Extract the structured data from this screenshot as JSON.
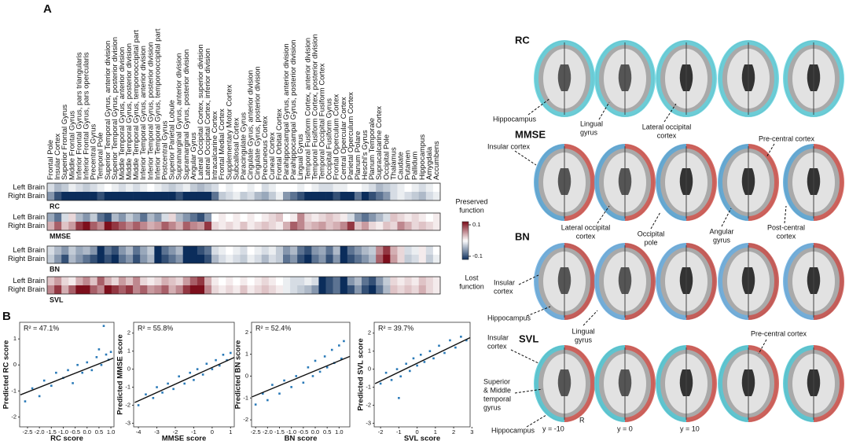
{
  "panel_a_label": "A",
  "panel_b_label": "B",
  "chart_data": [
    {
      "type": "heatmap",
      "regions": [
        "Frontal Pole",
        "Insular Cortex",
        "Superior Frontal Gyrus",
        "Middle Frontal Gyrus",
        "Inferior Frontal Gyrus, pars triangularis",
        "Inferior Frontal Gyrus, pars opercularis",
        "Precentral Gyrus",
        "Temporal Pole",
        "Superior Temporal Gyrus, anterior division",
        "Superior Temporal Gyrus, posterior division",
        "Middle Temporal Gyrus, anterior division",
        "Middle Temporal Gyrus, posterior division",
        "Middle Temporal Gyrus, temporooccipital part",
        "Inferior Temporal Gyrus, anterior division",
        "Inferior Temporal Gyrus, posterior division",
        "Inferior Temporal Gyrus, temporooccipital part",
        "Postcentral Gyrus",
        "Superior Parietal Lobule",
        "Supramarginal Gyrus, anterior division",
        "Supramarginal Gyrus, posterior division",
        "Angular Gyrus",
        "Lateral Occipital Cortex, superior division",
        "Lateral Occipital Cortex, inferior division",
        "Intracalcarine Cortex",
        "Frontal Medial Cortex",
        "Supplementary Motor Cortex",
        "Subcallosal Cortex",
        "Paracingulate Gyrus",
        "Cingulate Gyrus, anterior division",
        "Cingulate Gyrus, posterior division",
        "Precuneous Cortex",
        "Cuneal Cortex",
        "Frontal Orbital Cortex",
        "Parahippocampal Gyrus, anterior division",
        "Parahippocampal Gyrus, posterior division",
        "Lingual Gyrus",
        "Temporal Fusiform Cortex, anterior division",
        "Temporal Fusiform Cortex, posterior division",
        "Temporal Occipital Fusiform Cortex",
        "Occipital Fusiform Gyrus",
        "Frontal Operculum Cortex",
        "Central Opercular Cortex",
        "Parietal Operculum Cortex",
        "Planum Polare",
        "Heschl's Gyrus",
        "Planum Temporale",
        "Supracalcarine Cortex",
        "Occipital Pole",
        "Thalamus",
        "Caudate",
        "Putamen",
        "Pallidum",
        "Hippocampus",
        "Amygdala",
        "Accumbens"
      ],
      "row_labels": [
        "Left Brain",
        "Right Brain"
      ],
      "blocks": [
        {
          "name": "RC",
          "rows": [
            [
              -0.02,
              -0.04,
              -0.03,
              -0.01,
              -0.02,
              -0.03,
              -0.02,
              -0.01,
              0,
              -0.01,
              -0.02,
              -0.01,
              -0.02,
              -0.01,
              0,
              -0.01,
              -0.02,
              -0.03,
              -0.02,
              -0.01,
              -0.03,
              -0.04,
              -0.03,
              -0.02,
              0,
              -0.01,
              0,
              0,
              -0.01,
              0,
              -0.02,
              -0.01,
              0,
              0,
              0,
              -0.01,
              0,
              -0.01,
              -0.02,
              -0.02,
              -0.01,
              -0.01,
              0,
              0,
              -0.01,
              -0.02,
              -0.04,
              -0.03,
              -0.02,
              -0.01,
              0,
              -0.01,
              -0.02,
              -0.01,
              0
            ],
            [
              -0.06,
              -0.1,
              -0.12,
              -0.12,
              -0.12,
              -0.12,
              -0.12,
              -0.1,
              -0.12,
              -0.12,
              -0.12,
              -0.12,
              -0.12,
              -0.12,
              -0.12,
              -0.12,
              -0.12,
              -0.12,
              -0.1,
              -0.12,
              -0.12,
              -0.12,
              -0.12,
              -0.08,
              -0.03,
              -0.02,
              -0.01,
              -0.03,
              -0.02,
              -0.04,
              -0.05,
              -0.03,
              -0.01,
              -0.06,
              -0.08,
              -0.1,
              -0.12,
              -0.12,
              -0.12,
              -0.12,
              -0.1,
              -0.12,
              -0.12,
              -0.08,
              -0.12,
              -0.1,
              -0.08,
              -0.06,
              -0.02,
              -0.01,
              -0.02,
              -0.03,
              -0.04,
              -0.02,
              -0.01
            ]
          ]
        },
        {
          "name": "MMSE",
          "rows": [
            [
              -0.05,
              -0.08,
              -0.02,
              0.02,
              -0.04,
              -0.06,
              -0.03,
              -0.08,
              -0.1,
              -0.04,
              -0.06,
              -0.03,
              -0.05,
              -0.08,
              -0.04,
              -0.06,
              -0.02,
              0.02,
              -0.04,
              -0.06,
              -0.08,
              -0.1,
              -0.06,
              0,
              0.01,
              0,
              0.01,
              0,
              0.01,
              0,
              0.01,
              0.02,
              0.03,
              0,
              0.01,
              0.06,
              0.02,
              0.01,
              0.02,
              0.03,
              0.02,
              0.01,
              -0.02,
              -0.06,
              -0.08,
              -0.06,
              -0.04,
              -0.02,
              0.03,
              0.02,
              0.01,
              0.02,
              0.01,
              0,
              0.01
            ],
            [
              0.04,
              0.08,
              0.03,
              0.05,
              0.1,
              0.12,
              0.08,
              0.06,
              0.12,
              0.1,
              0.08,
              0.06,
              0.08,
              0.06,
              0.04,
              0.05,
              0.08,
              0.06,
              0.04,
              0.08,
              0.06,
              0.05,
              0.1,
              0.02,
              0.01,
              0.02,
              0.01,
              0.03,
              0.01,
              0.02,
              0.03,
              0.02,
              0.01,
              0.04,
              0.08,
              0.06,
              0.03,
              0.04,
              0.05,
              0.03,
              0.04,
              0.06,
              0.1,
              0.03,
              0.05,
              0.02,
              0.01,
              0.03,
              0.02,
              0.06,
              0.04,
              0.02,
              0.03,
              0.02,
              0.01
            ]
          ]
        },
        {
          "name": "BN",
          "rows": [
            [
              -0.02,
              -0.04,
              -0.06,
              -0.03,
              -0.05,
              -0.04,
              -0.06,
              -0.12,
              -0.08,
              -0.1,
              -0.06,
              -0.04,
              -0.08,
              -0.05,
              -0.03,
              -0.12,
              -0.08,
              -0.06,
              -0.04,
              -0.12,
              -0.12,
              -0.1,
              -0.08,
              -0.02,
              -0.01,
              0,
              -0.01,
              -0.02,
              0,
              -0.01,
              -0.02,
              -0.01,
              -0.03,
              -0.06,
              -0.04,
              -0.08,
              -0.1,
              -0.06,
              -0.05,
              -0.08,
              -0.04,
              -0.12,
              -0.08,
              -0.06,
              -0.04,
              -0.03,
              0.06,
              0.1,
              0.04,
              0.02,
              -0.02,
              -0.01,
              0.01,
              -0.02,
              0
            ],
            [
              -0.03,
              -0.06,
              -0.1,
              -0.04,
              -0.06,
              -0.08,
              -0.1,
              -0.12,
              -0.1,
              -0.12,
              -0.08,
              -0.06,
              -0.1,
              -0.06,
              -0.04,
              -0.12,
              -0.1,
              -0.08,
              -0.06,
              -0.12,
              -0.12,
              -0.12,
              -0.1,
              -0.04,
              -0.02,
              -0.01,
              -0.02,
              -0.03,
              -0.01,
              -0.02,
              -0.04,
              -0.02,
              -0.03,
              -0.08,
              -0.06,
              -0.1,
              -0.12,
              -0.08,
              -0.06,
              -0.1,
              -0.06,
              -0.12,
              -0.1,
              -0.08,
              -0.06,
              -0.04,
              0.08,
              0.12,
              0.05,
              0.02,
              -0.03,
              -0.02,
              0.01,
              -0.03,
              -0.01
            ]
          ]
        },
        {
          "name": "SVL",
          "rows": [
            [
              0.03,
              0.05,
              0.02,
              0.01,
              0.04,
              0.06,
              0.03,
              0.08,
              0.04,
              0.02,
              0.05,
              0.03,
              0.06,
              0.02,
              0.01,
              0.02,
              0.04,
              0.03,
              0.02,
              0.05,
              0.08,
              0.1,
              0.04,
              0.01,
              0,
              0.01,
              0,
              0.01,
              0,
              0.01,
              0.02,
              0.01,
              0,
              -0.01,
              -0.02,
              -0.02,
              -0.01,
              -0.02,
              -0.12,
              -0.1,
              -0.08,
              -0.12,
              -0.06,
              -0.04,
              -0.08,
              -0.1,
              -0.06,
              -0.03,
              0.02,
              0.01,
              0.02,
              0.01,
              0.03,
              0.02,
              0.01
            ],
            [
              0.06,
              0.1,
              0.04,
              0.08,
              0.12,
              0.12,
              0.08,
              0.06,
              0.12,
              0.1,
              0.08,
              0.1,
              0.06,
              0.08,
              0.05,
              0.06,
              0.08,
              0.04,
              0.06,
              0.1,
              0.12,
              0.12,
              0.06,
              0.02,
              0.01,
              0.02,
              0.01,
              0.03,
              0.01,
              0.02,
              0.03,
              0.02,
              0.01,
              -0.01,
              -0.02,
              -0.03,
              -0.04,
              -0.06,
              -0.12,
              -0.1,
              -0.08,
              -0.12,
              -0.1,
              -0.06,
              -0.1,
              -0.12,
              -0.08,
              -0.04,
              0.03,
              0.02,
              0.03,
              0.02,
              0.04,
              0.02,
              0.01
            ]
          ]
        }
      ],
      "clim": [
        -0.12,
        0.12
      ],
      "colors": [
        "#0b2d5b",
        "#ffffff",
        "#7d0f1c"
      ],
      "colorbar": {
        "ticks": [
          0.1,
          -0.1
        ],
        "top_label": [
          "Preserved",
          "function"
        ],
        "bottom_label": [
          "Lost",
          "function"
        ]
      }
    },
    {
      "type": "scatter",
      "r2_label": "R² = 47.1%",
      "xlabel": "RC score",
      "ylabel": "Predicted RC score",
      "color": "#2a7ab8",
      "x": [
        -2.6,
        -2.3,
        -2.0,
        -1.8,
        -1.5,
        -1.3,
        -1.0,
        -0.8,
        -0.6,
        -0.4,
        -0.2,
        0,
        0.2,
        0.4,
        0.5,
        0.6,
        0.8,
        0.9,
        1.0,
        0.7
      ],
      "values": [
        -1.4,
        -0.9,
        -1.2,
        -0.6,
        -0.8,
        -0.3,
        -0.5,
        -0.2,
        -0.7,
        0,
        -0.3,
        0.1,
        -0.2,
        0.3,
        0.6,
        0,
        0.4,
        0.2,
        0.5,
        1.5
      ],
      "fit": {
        "x": [
          -2.8,
          1.1
        ],
        "values": [
          -1.15,
          0.26
        ]
      },
      "xlim": [
        -2.83,
        1.13
      ],
      "ylim": [
        -2.38,
        1.64
      ],
      "xticks": [
        -2.5,
        {
          "value": -2,
          "label": "-2.0"
        },
        -1.5,
        {
          "value": -1,
          "label": "-1.0"
        },
        -0.5,
        {
          "value": 0,
          "label": "0.0"
        },
        0.5,
        {
          "value": 1,
          "label": "1.0"
        }
      ],
      "yticks": [
        1,
        0,
        -1,
        -2
      ]
    },
    {
      "type": "scatter",
      "r2_label": "R² = 55.8%",
      "xlabel": "MMSE score",
      "ylabel": "Predicted MMSE score",
      "color": "#2a7ab8",
      "x": [
        -4.0,
        -3.6,
        -3.2,
        -3.0,
        -2.7,
        -2.4,
        -2.1,
        -1.8,
        -1.5,
        -1.2,
        -1.0,
        -0.8,
        -0.5,
        -0.3,
        0,
        0.2,
        0.4,
        0.6,
        0.8,
        1.0
      ],
      "values": [
        -2.0,
        -1.4,
        -1.6,
        -1.0,
        -1.3,
        -0.8,
        -1.1,
        -0.4,
        -0.8,
        -0.2,
        -0.6,
        0,
        -0.3,
        0.3,
        0,
        0.5,
        0.2,
        0.8,
        0.5,
        0.9
      ],
      "fit": {
        "x": [
          -4.2,
          1.2
        ],
        "values": [
          -1.85,
          0.65
        ]
      },
      "xlim": [
        -4.26,
        1.2
      ],
      "ylim": [
        -3.2,
        2.6
      ],
      "xticks": [
        -4,
        -3,
        -2,
        -1,
        0,
        1
      ],
      "yticks": [
        2,
        1,
        0,
        -1,
        -2,
        -3
      ]
    },
    {
      "type": "scatter",
      "r2_label": "R² = 52.4%",
      "xlabel": "BN score",
      "ylabel": "Predicted BN score",
      "color": "#2a7ab8",
      "x": [
        -2.5,
        -2.2,
        -2.0,
        -1.8,
        -1.5,
        -1.3,
        -1.0,
        -0.8,
        -0.5,
        -0.3,
        -0.1,
        0,
        0.2,
        0.4,
        0.5,
        0.7,
        0.8,
        1.0,
        1.1,
        1.2
      ],
      "values": [
        -1.3,
        -0.8,
        -1.1,
        -0.4,
        -0.8,
        -0.2,
        -0.5,
        0,
        -0.3,
        0.4,
        0,
        0.7,
        0.2,
        0.9,
        0.4,
        1.2,
        0.6,
        1.4,
        0.8,
        1.6
      ],
      "fit": {
        "x": [
          -2.65,
          1.45
        ],
        "values": [
          -0.95,
          0.9
        ]
      },
      "xlim": [
        -2.67,
        1.45
      ],
      "ylim": [
        -2.32,
        2.46
      ],
      "xticks": [
        -2.5,
        {
          "value": -2,
          "label": "-2.0"
        },
        -1.5,
        {
          "value": -1,
          "label": "-1.0"
        },
        -0.5,
        {
          "value": 0,
          "label": "0.0"
        },
        0.5,
        {
          "value": 1,
          "label": "1.0"
        }
      ],
      "yticks": [
        2,
        1,
        0,
        -1,
        -2
      ]
    },
    {
      "type": "scatter",
      "r2_label": "R² = 39.7%",
      "xlabel": "SVL score",
      "ylabel": "Predicted SVL score",
      "color": "#2a7ab8",
      "x": [
        -2.0,
        -1.7,
        -1.4,
        -1.1,
        -0.9,
        -0.6,
        -0.4,
        -0.2,
        0,
        0.2,
        0.4,
        0.7,
        0.9,
        1.2,
        1.5,
        1.8,
        2.1,
        2.4,
        2.7,
        -1.0
      ],
      "values": [
        -0.8,
        -0.2,
        -0.6,
        0,
        -0.4,
        0.3,
        -0.1,
        0.6,
        0.2,
        0.8,
        0.4,
        1.0,
        0.6,
        1.3,
        0.9,
        1.6,
        1.2,
        1.8,
        1.6,
        -1.6
      ],
      "fit": {
        "x": [
          -2.3,
          2.9
        ],
        "values": [
          -0.8,
          1.75
        ]
      },
      "xlim": [
        -2.35,
        2.9
      ],
      "ylim": [
        -3.2,
        2.6
      ],
      "xticks": [
        -2,
        -1,
        0,
        1,
        2,
        3
      ],
      "yticks": [
        2,
        1,
        0,
        -1,
        -2,
        -3
      ]
    }
  ],
  "brain_maps": {
    "rows": [
      {
        "title": "RC",
        "annotations": [
          [
            "Hippocampus"
          ],
          [
            "Lingual",
            "gyrus"
          ],
          [
            "Lateral occipital",
            "cortex"
          ]
        ]
      },
      {
        "title": "MMSE",
        "annotations": [
          [
            "Insular cortex"
          ],
          [
            "Pre-central cortex"
          ],
          [
            "Lateral occipital",
            "cortex"
          ],
          [
            "Occipital",
            "pole"
          ],
          [
            "Angular",
            "gyrus"
          ],
          [
            "Post-central",
            "cortex"
          ]
        ]
      },
      {
        "title": "BN",
        "annotations": [
          [
            "Insular",
            "cortex"
          ],
          [
            "Hippocampus"
          ],
          [
            "Lingual",
            "gyrus"
          ]
        ]
      },
      {
        "title": "SVL",
        "annotations": [
          [
            "Insular",
            "cortex"
          ],
          [
            "Pre-central cortex"
          ],
          [
            "Superior",
            "& Middle",
            "temporal",
            "gyrus"
          ],
          [
            "Hippocampus"
          ]
        ]
      }
    ],
    "slice_labels": [
      "y = -10",
      "y = 0",
      "y = 10"
    ],
    "side_label": "R"
  }
}
